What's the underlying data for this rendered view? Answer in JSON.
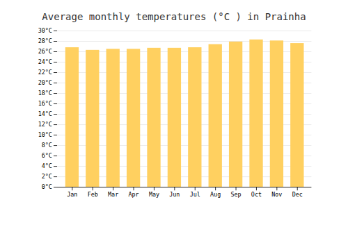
{
  "chart_data": {
    "type": "bar",
    "title": "Average monthly temperatures (°C ) in Prainha",
    "categories": [
      "Jan",
      "Feb",
      "Mar",
      "Apr",
      "May",
      "Jun",
      "Jul",
      "Aug",
      "Sep",
      "Oct",
      "Nov",
      "Dec"
    ],
    "values": [
      26.8,
      26.3,
      26.5,
      26.5,
      26.7,
      26.7,
      26.8,
      27.4,
      27.9,
      28.3,
      28.1,
      27.6
    ],
    "color": "#FFD060",
    "ylim": [
      0,
      30
    ],
    "yticks": [
      {
        "value": 0,
        "label": "0°C"
      },
      {
        "value": 2,
        "label": "2°C"
      },
      {
        "value": 4,
        "label": "4°C"
      },
      {
        "value": 6,
        "label": "6°C"
      },
      {
        "value": 8,
        "label": "8°C"
      },
      {
        "value": 10,
        "label": "10°C"
      },
      {
        "value": 12,
        "label": "12°C"
      },
      {
        "value": 14,
        "label": "14°C"
      },
      {
        "value": 16,
        "label": "16°C"
      },
      {
        "value": 18,
        "label": "18°C"
      },
      {
        "value": 20,
        "label": "20°C"
      },
      {
        "value": 22,
        "label": "22°C"
      },
      {
        "value": 24,
        "label": "24°C"
      },
      {
        "value": 26,
        "label": "26°C"
      },
      {
        "value": 28,
        "label": "28°C"
      },
      {
        "value": 30,
        "label": "30°C"
      }
    ],
    "grid": true
  }
}
